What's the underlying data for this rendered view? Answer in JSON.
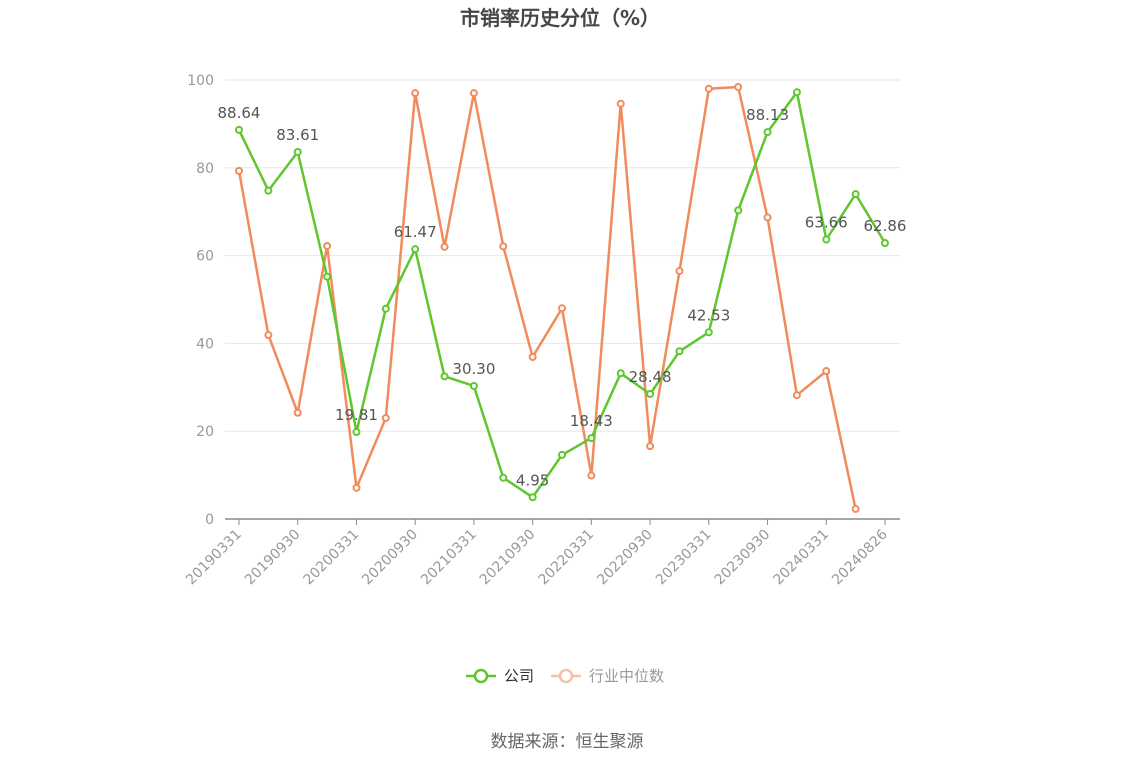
{
  "chart_data": {
    "type": "line",
    "title": "市销率历史分位（%）",
    "source": "数据来源：恒生聚源",
    "ylim": [
      0,
      100
    ],
    "yticks": [
      0,
      20,
      40,
      60,
      80,
      100
    ],
    "grid": true,
    "legend_position": "bottom-center",
    "x": [
      "20190331",
      "20190630",
      "20190930",
      "20191231",
      "20200331",
      "20200630",
      "20200930",
      "20201231",
      "20210331",
      "20210630",
      "20210930",
      "20211231",
      "20220331",
      "20220630",
      "20220930",
      "20221231",
      "20230331",
      "20230630",
      "20230930",
      "20231231",
      "20240331",
      "20240630",
      "20240826"
    ],
    "x_tick_labels": [
      "20190331",
      "20190930",
      "20200331",
      "20200930",
      "20210331",
      "20210930",
      "20220331",
      "20220930",
      "20230331",
      "20230930",
      "20240331",
      "20240826"
    ],
    "series": [
      {
        "name": "公司",
        "color": "#5ec72d",
        "values": [
          88.64,
          74.8,
          83.61,
          55.2,
          19.81,
          47.9,
          61.47,
          32.5,
          30.3,
          9.4,
          4.95,
          14.6,
          18.43,
          33.2,
          28.48,
          38.2,
          42.53,
          70.3,
          88.13,
          97.2,
          63.66,
          74.0,
          62.86
        ],
        "labeled_points": [
          {
            "index": 0,
            "text": "88.64"
          },
          {
            "index": 2,
            "text": "83.61"
          },
          {
            "index": 4,
            "text": "19.81"
          },
          {
            "index": 6,
            "text": "61.47"
          },
          {
            "index": 8,
            "text": "30.30"
          },
          {
            "index": 10,
            "text": "4.95"
          },
          {
            "index": 12,
            "text": "18.43"
          },
          {
            "index": 14,
            "text": "28.48"
          },
          {
            "index": 16,
            "text": "42.53"
          },
          {
            "index": 18,
            "text": "88.13"
          },
          {
            "index": 20,
            "text": "63.66"
          },
          {
            "index": 22,
            "text": "62.86"
          }
        ]
      },
      {
        "name": "行业中位数",
        "color": "#f18b5c",
        "values": [
          79.3,
          41.9,
          24.2,
          62.2,
          7.1,
          23.0,
          97.0,
          62.0,
          97.0,
          62.1,
          36.9,
          48.0,
          9.9,
          94.6,
          16.6,
          56.5,
          98.0,
          98.4,
          68.7,
          28.2,
          33.7,
          2.3,
          null
        ]
      }
    ]
  }
}
